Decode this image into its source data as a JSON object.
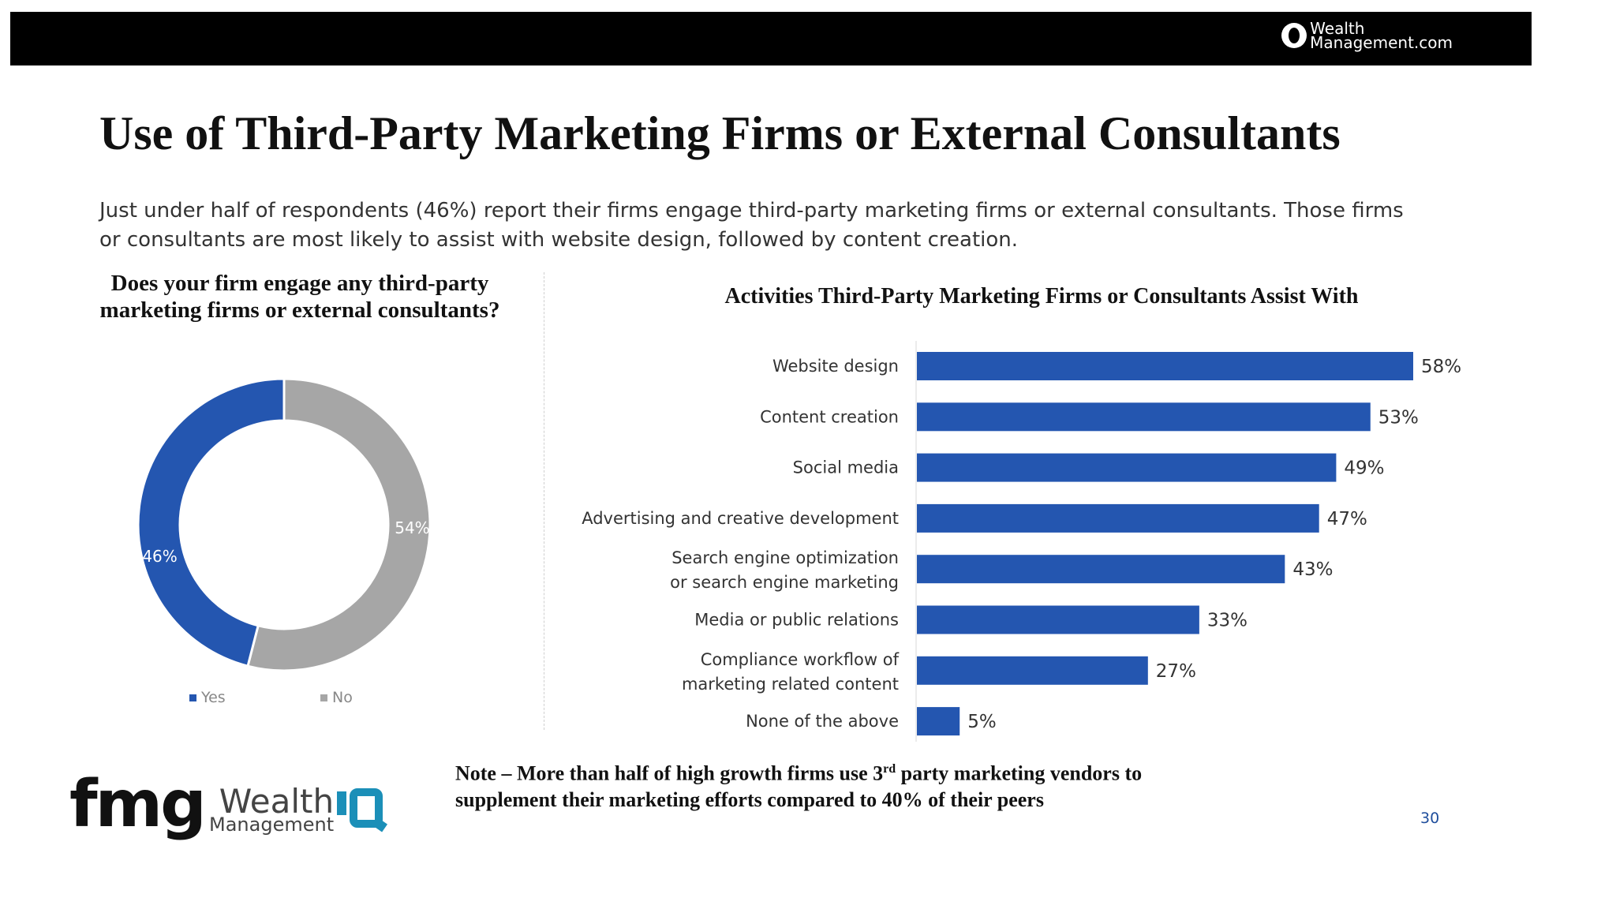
{
  "header": {
    "brand_line1": "Wealth",
    "brand_line2": "Management.com"
  },
  "slide": {
    "title": "Use of Third-Party Marketing Firms or External Consultants",
    "subtitle": "Just under half of respondents (46%) report their firms engage third-party marketing firms or external consultants. Those firms or consultants are most likely to assist with website design, followed by content creation.",
    "page_number": "30"
  },
  "note": {
    "prefix": "Note – More than half of high growth firms use 3",
    "sup": "rd",
    "suffix": " party marketing vendors to supplement their marketing efforts compared to 40% of their peers"
  },
  "logos": {
    "fmg": "fmg",
    "wealth": "Wealth",
    "management": "Management"
  },
  "colors": {
    "blue": "#2456b0",
    "gray": "#a6a6a6"
  },
  "chart_data": [
    {
      "type": "pie",
      "variant": "donut",
      "title": "Does your firm engage any third-party marketing firms or external consultants?",
      "categories": [
        "Yes",
        "No"
      ],
      "values": [
        46,
        54
      ],
      "labels": [
        "46%",
        "54%"
      ],
      "legend": "bottom"
    },
    {
      "type": "bar",
      "orientation": "horizontal",
      "title": "Activities Third-Party Marketing Firms or Consultants Assist With",
      "categories": [
        [
          "Website design"
        ],
        [
          "Content creation"
        ],
        [
          "Social media"
        ],
        [
          "Advertising and creative development"
        ],
        [
          "Search engine optimization",
          "or search engine marketing"
        ],
        [
          "Media or public relations"
        ],
        [
          "Compliance workflow of",
          "marketing related content"
        ],
        [
          "None of the above"
        ]
      ],
      "values": [
        58,
        53,
        49,
        47,
        43,
        33,
        27,
        5
      ],
      "labels": [
        "58%",
        "53%",
        "49%",
        "47%",
        "43%",
        "33%",
        "27%",
        "5%"
      ],
      "xlim": [
        0,
        58
      ],
      "unit": "%"
    }
  ]
}
